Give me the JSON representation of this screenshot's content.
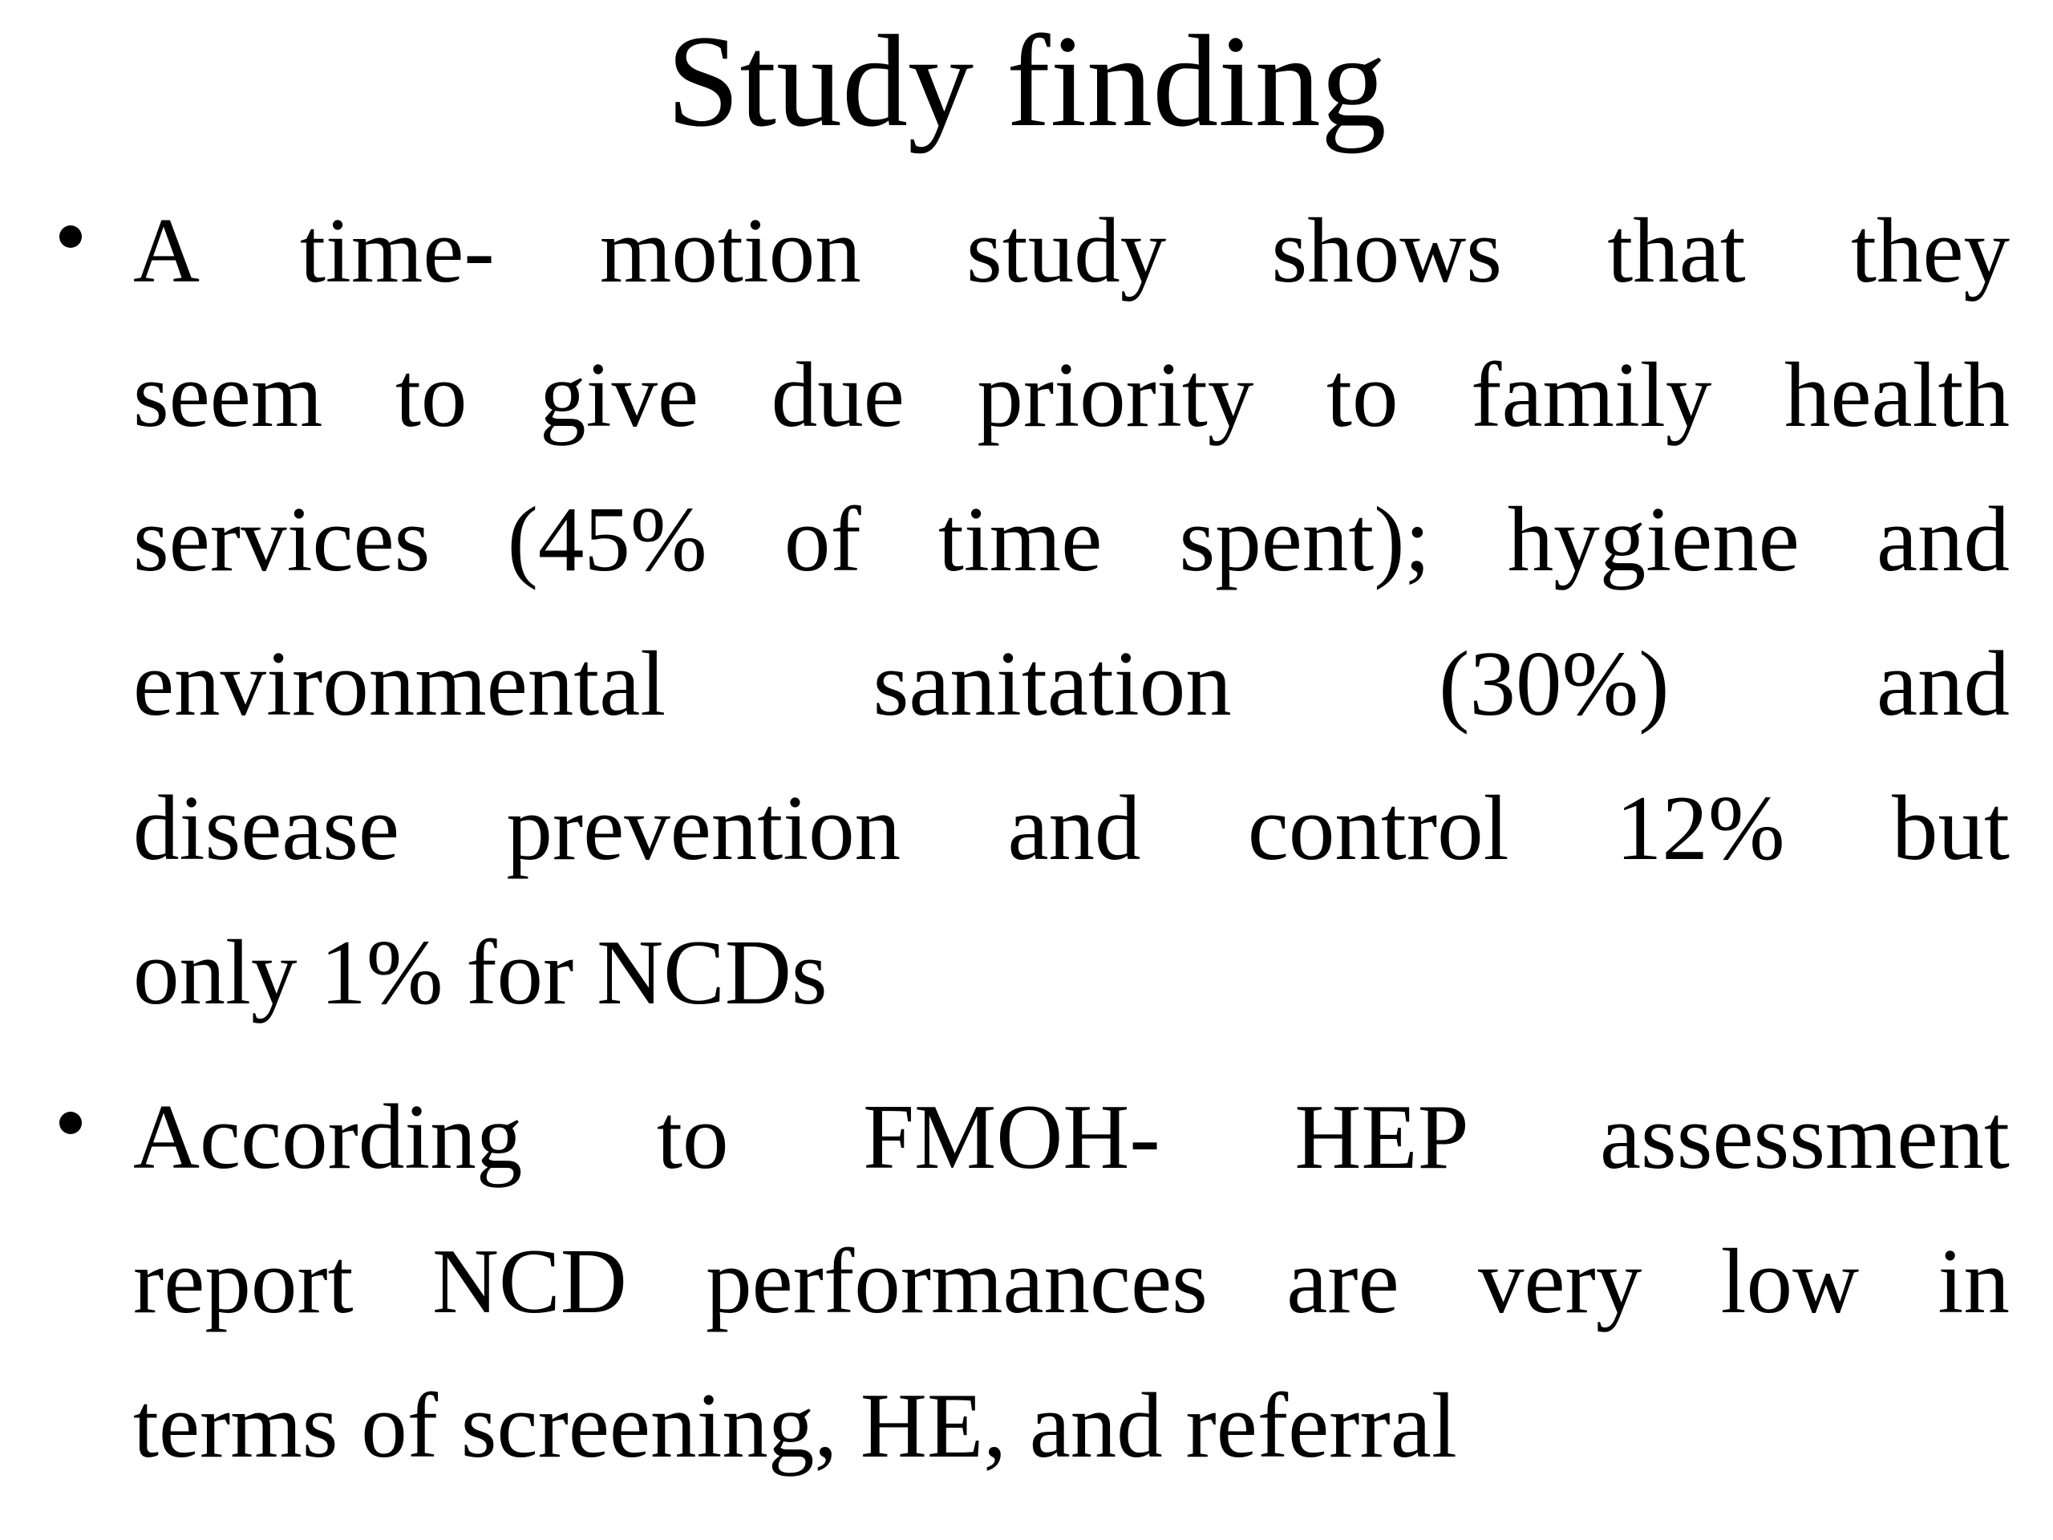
{
  "slide": {
    "colors": {
      "background": "#ffffff",
      "text": "#000000"
    },
    "title": "Study finding",
    "bullet_glyph": "•",
    "bullets": [
      {
        "full_text": "A time- motion study shows that they seem to give due priority to family health services (45% of time spent); hygiene and environmental sanitation (30%) and disease prevention and control 12% but only 1% for NCDs",
        "lines": [
          "A time- motion study shows that they",
          "seem to give due priority to family health",
          "services (45% of time spent); hygiene and",
          "environmental sanitation (30%) and",
          "disease prevention and control 12% but",
          "only 1% for NCDs"
        ]
      },
      {
        "full_text": "According to FMOH- HEP assessment report NCD performances are very low in terms of screening, HE, and referral",
        "lines": [
          "According to FMOH- HEP assessment",
          "report NCD performances are very low in",
          "terms of screening, HE, and referral"
        ]
      }
    ]
  }
}
